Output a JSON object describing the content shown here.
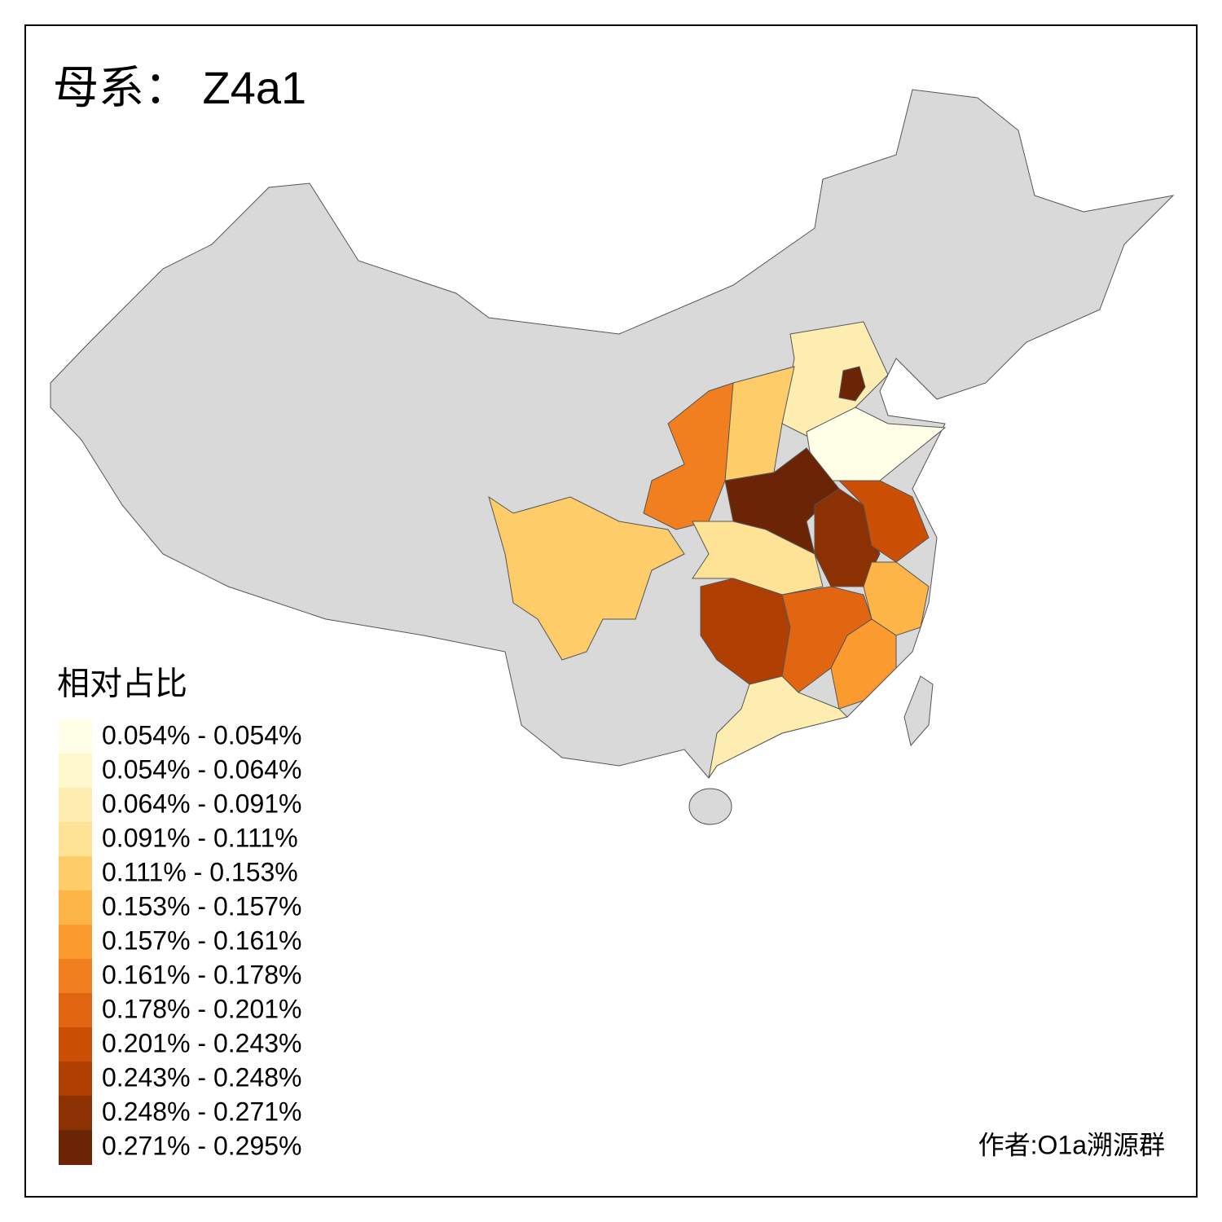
{
  "title": "母系： Z4a1",
  "legend": {
    "title": "相对占比",
    "items": [
      {
        "label": "0.054% - 0.054%",
        "color": "#fffee6"
      },
      {
        "label": "0.054% - 0.064%",
        "color": "#fff8cd"
      },
      {
        "label": "0.064% - 0.091%",
        "color": "#feedb1"
      },
      {
        "label": "0.091% - 0.111%",
        "color": "#fee397"
      },
      {
        "label": "0.111% - 0.153%",
        "color": "#fecd6a"
      },
      {
        "label": "0.153% - 0.157%",
        "color": "#fdb548"
      },
      {
        "label": "0.157% - 0.161%",
        "color": "#fb9a2f"
      },
      {
        "label": "0.161% - 0.178%",
        "color": "#f17f20"
      },
      {
        "label": "0.178% - 0.201%",
        "color": "#e26612"
      },
      {
        "label": "0.201% - 0.243%",
        "color": "#cc4f06"
      },
      {
        "label": "0.243% - 0.248%",
        "color": "#b03f04"
      },
      {
        "label": "0.248% - 0.271%",
        "color": "#8c3104"
      },
      {
        "label": "0.271% - 0.295%",
        "color": "#6b2506"
      }
    ]
  },
  "credit": "作者:O1a溯源群"
}
